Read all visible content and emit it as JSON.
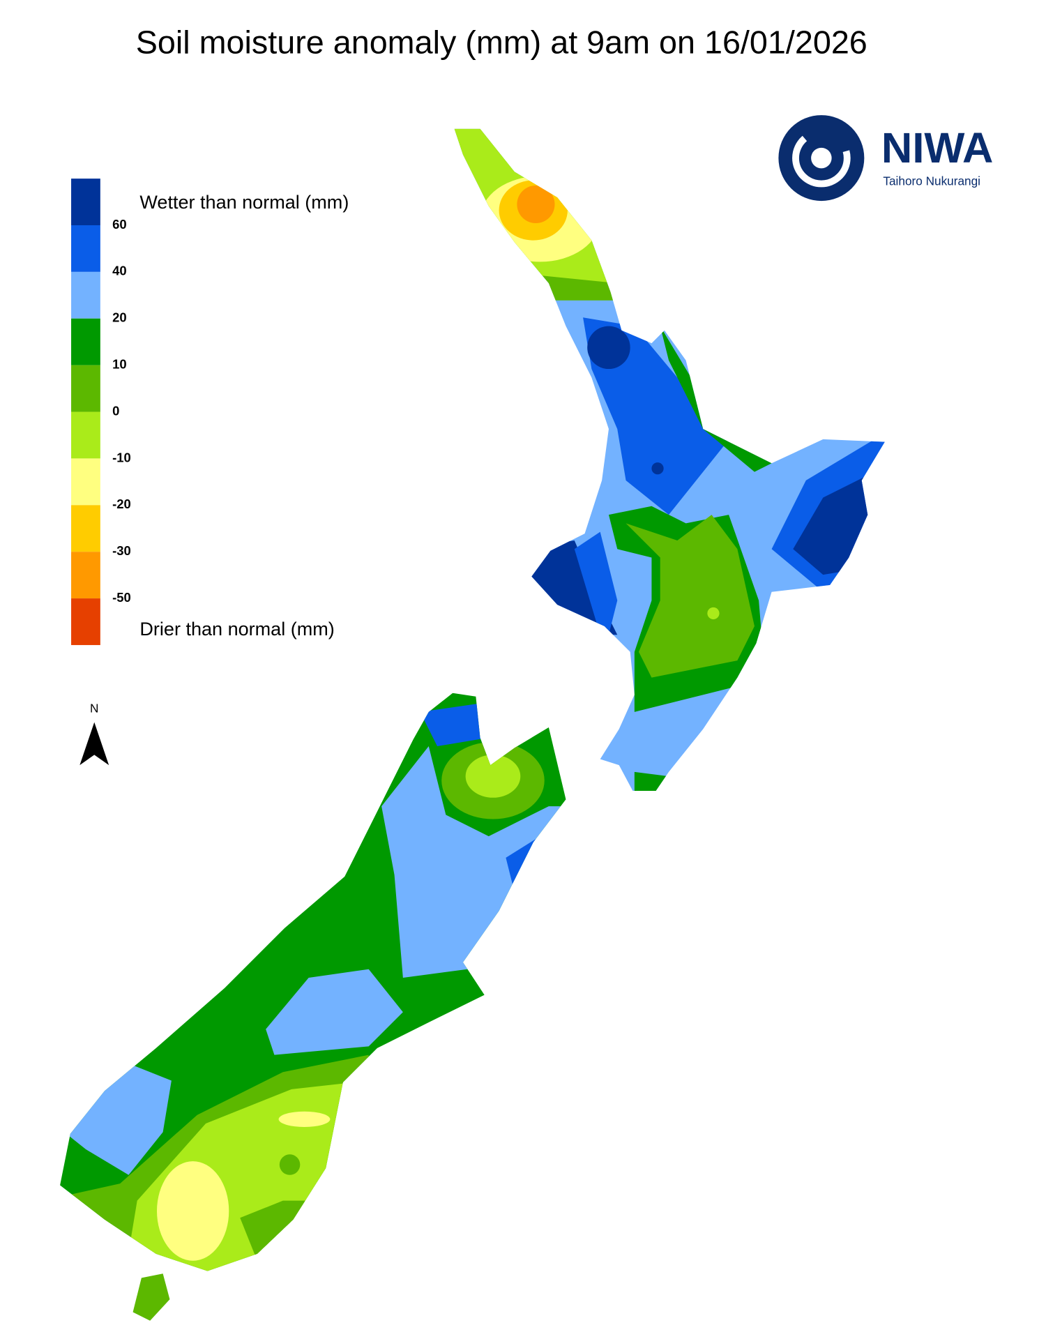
{
  "title": "Soil moisture anomaly (mm) at 9am on 16/01/2026",
  "legend": {
    "wetter_label": "Wetter than normal (mm)",
    "drier_label": "Drier than normal (mm)",
    "colors": [
      "#003399",
      "#0a5de8",
      "#73b2ff",
      "#009900",
      "#5cb800",
      "#aaeb1a",
      "#ffff80",
      "#ffcc00",
      "#ff9900",
      "#e64000"
    ],
    "ticks": [
      "60",
      "40",
      "20",
      "10",
      "0",
      "-10",
      "-20",
      "-30",
      "-50"
    ]
  },
  "north_label": "N",
  "logo": {
    "name": "NIWA",
    "tagline": "Taihoro Nukurangi"
  }
}
